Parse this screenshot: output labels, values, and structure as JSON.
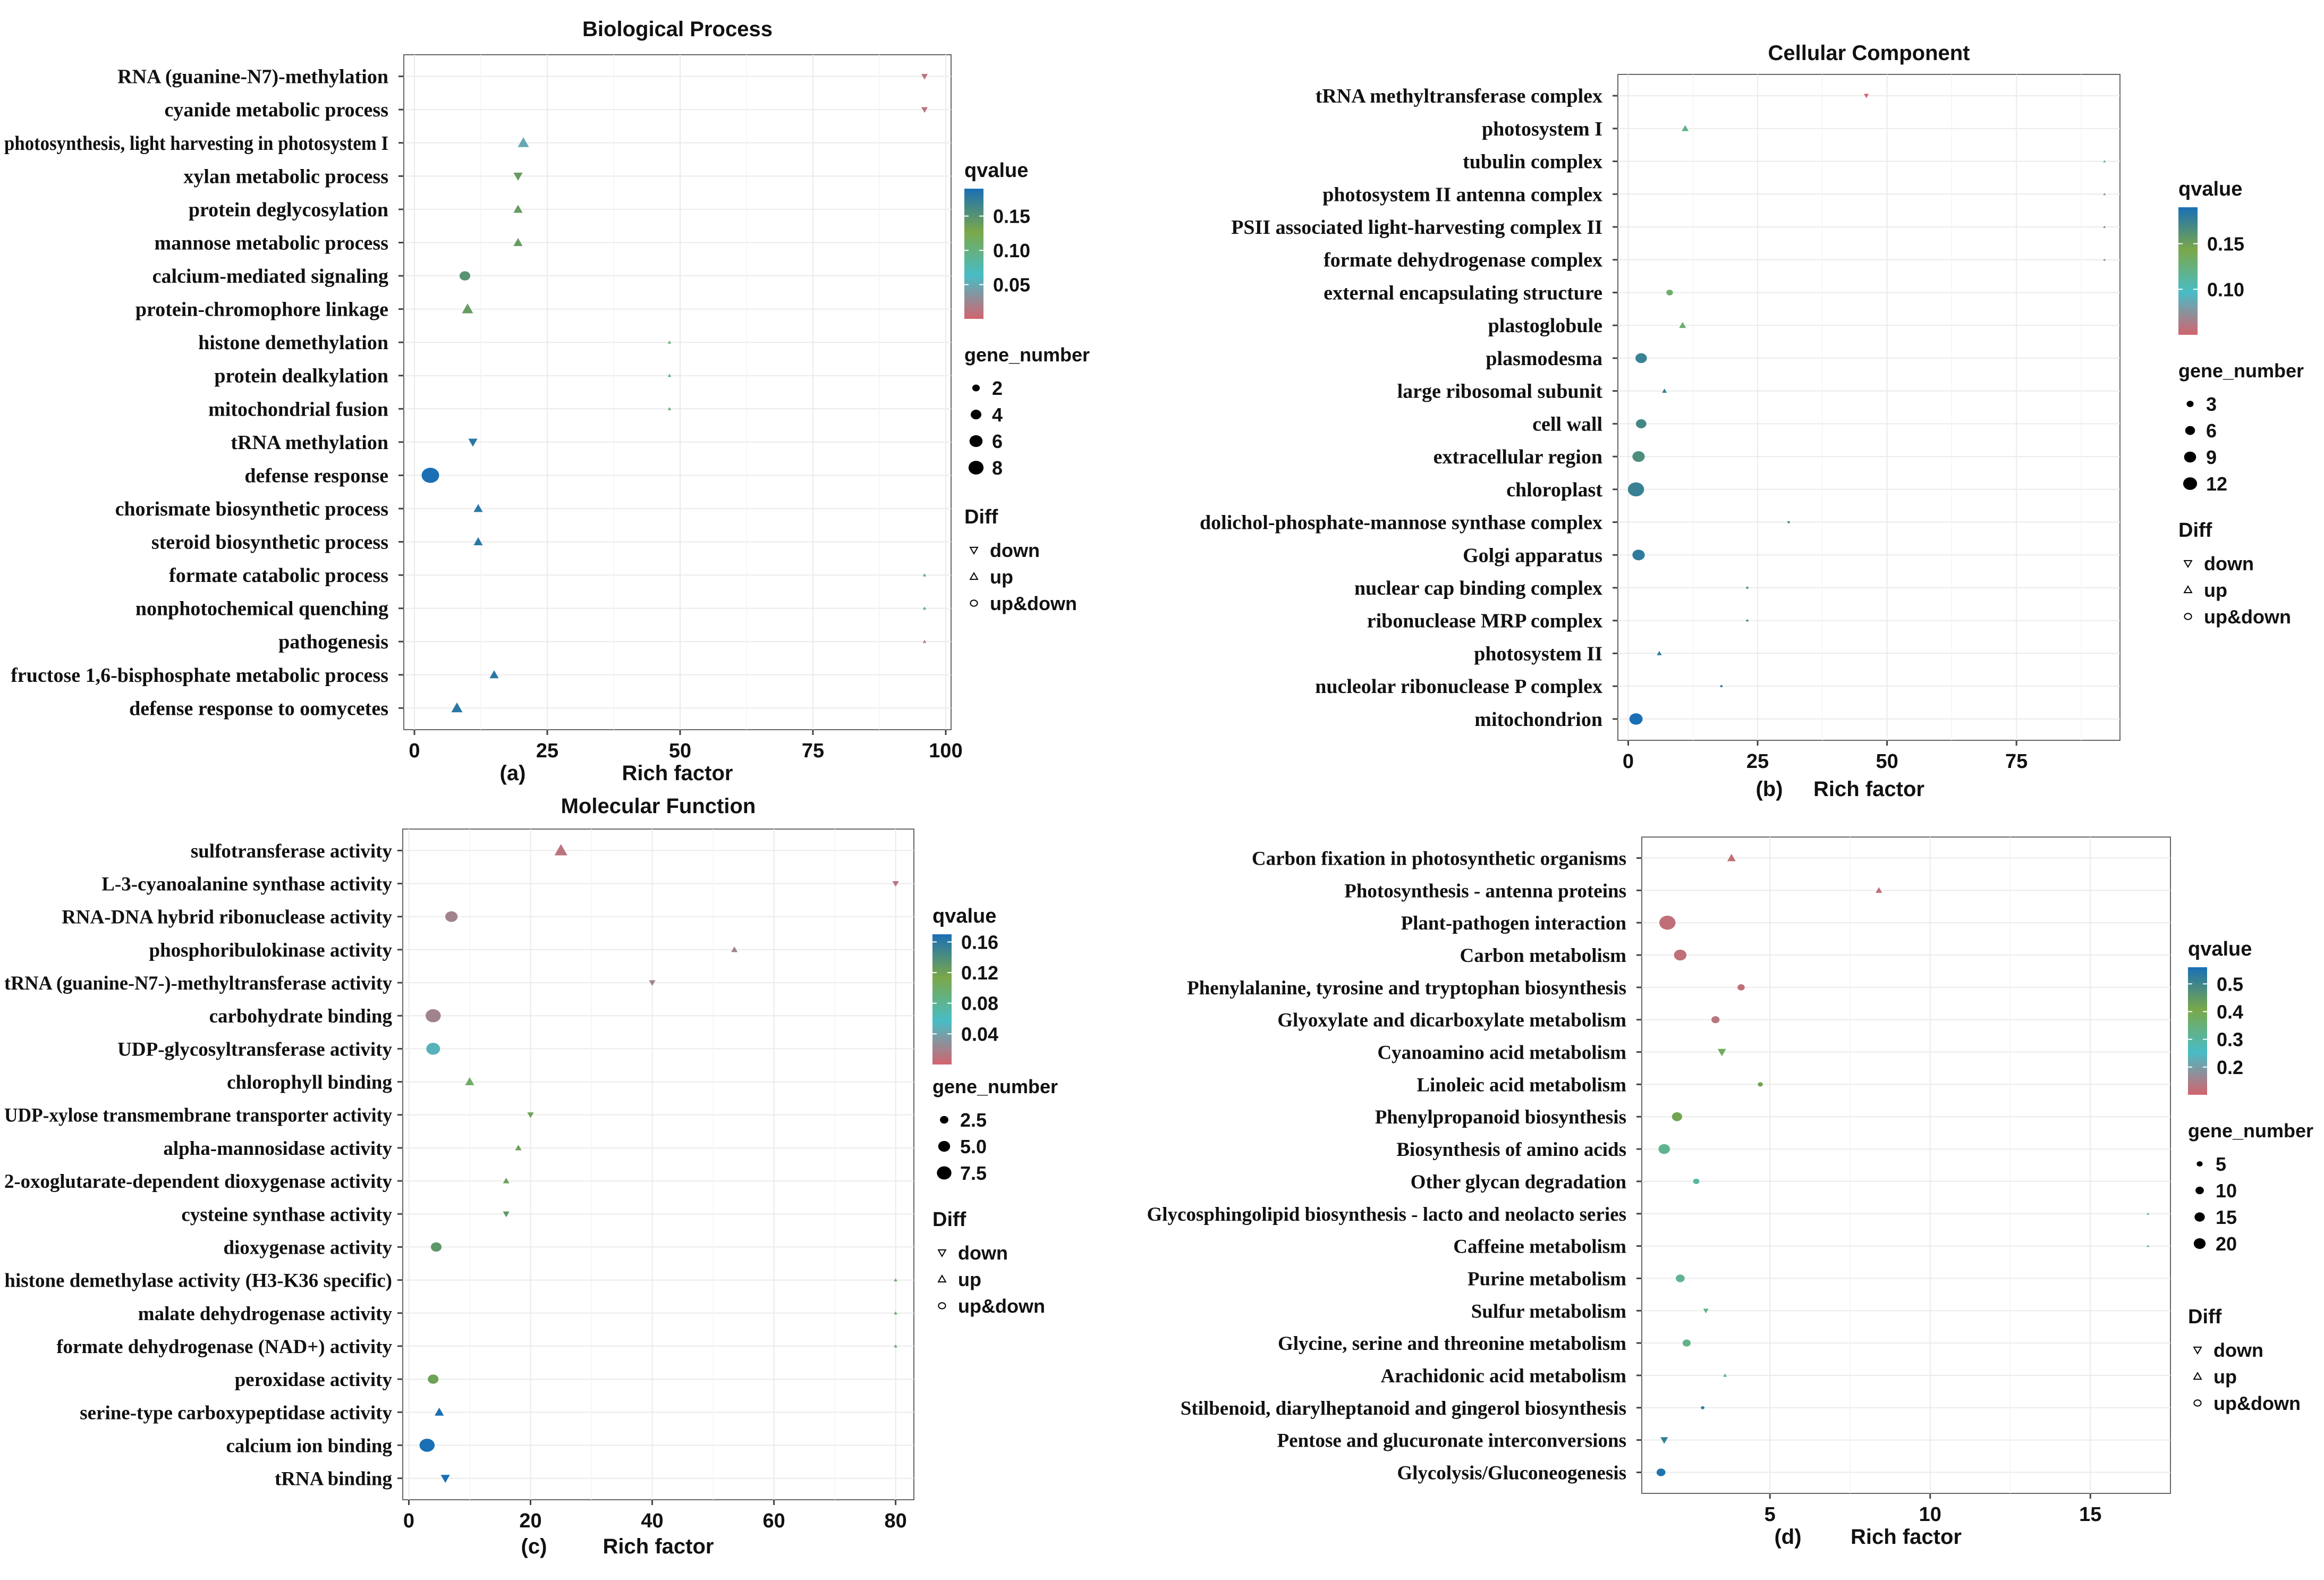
{
  "legend_labels": {
    "qvalue": "qvalue",
    "gene_number": "gene_number",
    "diff": "Diff",
    "down": "down",
    "up": "up",
    "updown": "up&down"
  },
  "colors": {
    "low_q": "#d2646e",
    "mid1_q": "#48bcc6",
    "mid2_q": "#7aa84a",
    "high_q": "#1a6fb5",
    "grid": "#ebebeb",
    "axis": "#444444"
  },
  "chart_data": [
    {
      "type": "scatter",
      "panel_label": "(a)",
      "title": "Biological Process",
      "xlabel": "Rich factor",
      "xlim": [
        -2,
        101
      ],
      "xticks": [
        0,
        25,
        50,
        75,
        100
      ],
      "qvalue_range": [
        0.0,
        0.19
      ],
      "qvalue_ticks": [
        "0.15",
        "0.10",
        "0.05"
      ],
      "qvalue_tick_values": [
        0.15,
        0.1,
        0.05
      ],
      "gene_number_ticks": [
        "2",
        "4",
        "6",
        "8"
      ],
      "gene_number_values": [
        2,
        4,
        6,
        8
      ],
      "terms": [
        {
          "name": "RNA (guanine-N7)-methylation",
          "rich": 96,
          "genes": 1,
          "q": 0.01,
          "diff": "down"
        },
        {
          "name": "cyanide metabolic process",
          "rich": 96,
          "genes": 1,
          "q": 0.01,
          "diff": "down"
        },
        {
          "name": "photosynthesis, light harvesting in photosystem I",
          "rich": 20.5,
          "genes": 3,
          "q": 0.05,
          "diff": "up"
        },
        {
          "name": "xylan metabolic process",
          "rich": 19.5,
          "genes": 2,
          "q": 0.14,
          "diff": "down"
        },
        {
          "name": "protein deglycosylation",
          "rich": 19.5,
          "genes": 2,
          "q": 0.14,
          "diff": "up"
        },
        {
          "name": "mannose metabolic process",
          "rich": 19.5,
          "genes": 2,
          "q": 0.14,
          "diff": "up"
        },
        {
          "name": "calcium-mediated signaling",
          "rich": 9.5,
          "genes": 3,
          "q": 0.15,
          "diff": "updown"
        },
        {
          "name": "protein-chromophore linkage",
          "rich": 10,
          "genes": 3,
          "q": 0.14,
          "diff": "up"
        },
        {
          "name": "histone demethylation",
          "rich": 48,
          "genes": 0.3,
          "q": 0.1,
          "diff": "up"
        },
        {
          "name": "protein dealkylation",
          "rich": 48,
          "genes": 0.3,
          "q": 0.1,
          "diff": "up"
        },
        {
          "name": "mitochondrial fusion",
          "rich": 48,
          "genes": 0.3,
          "q": 0.1,
          "diff": "up"
        },
        {
          "name": "tRNA methylation",
          "rich": 11,
          "genes": 2,
          "q": 0.18,
          "diff": "down"
        },
        {
          "name": "defense response",
          "rich": 3,
          "genes": 8,
          "q": 0.19,
          "diff": "updown"
        },
        {
          "name": "chorismate biosynthetic process",
          "rich": 12,
          "genes": 2,
          "q": 0.18,
          "diff": "up"
        },
        {
          "name": "steroid biosynthetic process",
          "rich": 12,
          "genes": 2,
          "q": 0.18,
          "diff": "up"
        },
        {
          "name": "formate catabolic process",
          "rich": 96,
          "genes": 0.3,
          "q": 0.1,
          "diff": "up"
        },
        {
          "name": "nonphotochemical quenching",
          "rich": 96,
          "genes": 0.3,
          "q": 0.1,
          "diff": "up"
        },
        {
          "name": "pathogenesis",
          "rich": 96,
          "genes": 0.3,
          "q": 0.02,
          "diff": "up"
        },
        {
          "name": "fructose 1,6-bisphosphate metabolic process",
          "rich": 15,
          "genes": 2,
          "q": 0.18,
          "diff": "up"
        },
        {
          "name": "defense response to oomycetes",
          "rich": 8,
          "genes": 3,
          "q": 0.18,
          "diff": "up"
        }
      ]
    },
    {
      "type": "scatter",
      "panel_label": "(b)",
      "title": "Cellular Component",
      "xlabel": "Rich factor",
      "xlim": [
        -2,
        95
      ],
      "xticks": [
        0,
        25,
        50,
        75
      ],
      "qvalue_range": [
        0.05,
        0.19
      ],
      "qvalue_ticks": [
        "0.15",
        "0.10"
      ],
      "qvalue_tick_values": [
        0.15,
        0.1
      ],
      "gene_number_ticks": [
        "3",
        "6",
        "9",
        "12"
      ],
      "gene_number_values": [
        3,
        6,
        9,
        12
      ],
      "terms": [
        {
          "name": "tRNA methyltransferase complex",
          "rich": 46,
          "genes": 1,
          "q": 0.05,
          "diff": "down"
        },
        {
          "name": "photosystem I",
          "rich": 11,
          "genes": 2,
          "q": 0.12,
          "diff": "up"
        },
        {
          "name": "tubulin complex",
          "rich": 92,
          "genes": 0.3,
          "q": 0.12,
          "diff": "up"
        },
        {
          "name": "photosystem II antenna complex",
          "rich": 92,
          "genes": 0.3,
          "q": 0.07,
          "diff": "up"
        },
        {
          "name": "PSII associated light-harvesting complex II",
          "rich": 92,
          "genes": 0.3,
          "q": 0.07,
          "diff": "up"
        },
        {
          "name": "formate dehydrogenase complex",
          "rich": 92,
          "genes": 0.3,
          "q": 0.07,
          "diff": "up"
        },
        {
          "name": "external encapsulating structure",
          "rich": 8,
          "genes": 2,
          "q": 0.13,
          "diff": "updown"
        },
        {
          "name": "plastoglobule",
          "rich": 10.5,
          "genes": 2,
          "q": 0.13,
          "diff": "up"
        },
        {
          "name": "plasmodesma",
          "rich": 2.5,
          "genes": 6,
          "q": 0.175,
          "diff": "updown"
        },
        {
          "name": "large ribosomal subunit",
          "rich": 7,
          "genes": 1,
          "q": 0.175,
          "diff": "up"
        },
        {
          "name": "cell wall",
          "rich": 2.5,
          "genes": 5,
          "q": 0.17,
          "diff": "updown"
        },
        {
          "name": "extracellular region",
          "rich": 2,
          "genes": 7,
          "q": 0.165,
          "diff": "updown"
        },
        {
          "name": "chloroplast",
          "rich": 1.5,
          "genes": 12,
          "q": 0.175,
          "diff": "updown"
        },
        {
          "name": "dolichol-phosphate-mannose synthase complex",
          "rich": 31,
          "genes": 0.3,
          "q": 0.17,
          "diff": "updown"
        },
        {
          "name": "Golgi apparatus",
          "rich": 2,
          "genes": 7,
          "q": 0.18,
          "diff": "updown"
        },
        {
          "name": "nuclear cap binding complex",
          "rich": 23,
          "genes": 0.3,
          "q": 0.16,
          "diff": "updown"
        },
        {
          "name": "ribonuclease MRP complex",
          "rich": 23,
          "genes": 0.3,
          "q": 0.16,
          "diff": "updown"
        },
        {
          "name": "photosystem II",
          "rich": 6,
          "genes": 1,
          "q": 0.18,
          "diff": "up"
        },
        {
          "name": "nucleolar ribonuclease P complex",
          "rich": 18,
          "genes": 0.3,
          "q": 0.18,
          "diff": "updown"
        },
        {
          "name": "mitochondrion",
          "rich": 1.5,
          "genes": 8,
          "q": 0.19,
          "diff": "updown"
        }
      ]
    },
    {
      "type": "scatter",
      "panel_label": "(c)",
      "title": "Molecular Function",
      "xlabel": "Rich factor",
      "xlim": [
        -1,
        83
      ],
      "xticks": [
        0,
        20,
        40,
        60,
        80
      ],
      "qvalue_range": [
        0.0,
        0.17
      ],
      "qvalue_ticks": [
        "0.16",
        "0.12",
        "0.08",
        "0.04"
      ],
      "qvalue_tick_values": [
        0.16,
        0.12,
        0.08,
        0.04
      ],
      "gene_number_ticks": [
        "2.5",
        "5.0",
        "7.5"
      ],
      "gene_number_values": [
        2.5,
        5.0,
        7.5
      ],
      "terms": [
        {
          "name": "sulfotransferase activity",
          "rich": 25,
          "genes": 4,
          "q": 0.01,
          "diff": "up"
        },
        {
          "name": "L-3-cyanoalanine synthase activity",
          "rich": 80,
          "genes": 1,
          "q": 0.01,
          "diff": "down"
        },
        {
          "name": "RNA-DNA hybrid ribonuclease activity",
          "rich": 7,
          "genes": 4,
          "q": 0.02,
          "diff": "updown"
        },
        {
          "name": "phosphoribulokinase activity",
          "rich": 53.5,
          "genes": 1,
          "q": 0.02,
          "diff": "up"
        },
        {
          "name": "tRNA (guanine-N7-)-methyltransferase activity",
          "rich": 40,
          "genes": 1,
          "q": 0.02,
          "diff": "down"
        },
        {
          "name": "carbohydrate binding",
          "rich": 4,
          "genes": 6,
          "q": 0.02,
          "diff": "updown"
        },
        {
          "name": "UDP-glycosyltransferase activity",
          "rich": 4,
          "genes": 5,
          "q": 0.05,
          "diff": "updown"
        },
        {
          "name": "chlorophyll binding",
          "rich": 10,
          "genes": 2,
          "q": 0.1,
          "diff": "up"
        },
        {
          "name": "UDP-xylose transmembrane transporter activity",
          "rich": 20,
          "genes": 1,
          "q": 0.12,
          "diff": "down"
        },
        {
          "name": "alpha-mannosidase activity",
          "rich": 18,
          "genes": 1,
          "q": 0.12,
          "diff": "up"
        },
        {
          "name": "2-oxoglutarate-dependent dioxygenase activity",
          "rich": 16,
          "genes": 1,
          "q": 0.12,
          "diff": "up"
        },
        {
          "name": "cysteine synthase activity",
          "rich": 16,
          "genes": 1,
          "q": 0.13,
          "diff": "down"
        },
        {
          "name": "dioxygenase activity",
          "rich": 4.5,
          "genes": 3,
          "q": 0.13,
          "diff": "updown"
        },
        {
          "name": "histone demethylase activity (H3-K36 specific)",
          "rich": 80,
          "genes": 0.3,
          "q": 0.1,
          "diff": "up"
        },
        {
          "name": "malate dehydrogenase activity",
          "rich": 80,
          "genes": 0.3,
          "q": 0.1,
          "diff": "up"
        },
        {
          "name": "formate dehydrogenase (NAD+) activity",
          "rich": 80,
          "genes": 0.3,
          "q": 0.1,
          "diff": "up"
        },
        {
          "name": "peroxidase activity",
          "rich": 4,
          "genes": 3,
          "q": 0.12,
          "diff": "updown"
        },
        {
          "name": "serine-type carboxypeptidase activity",
          "rich": 5,
          "genes": 2,
          "q": 0.17,
          "diff": "up"
        },
        {
          "name": "calcium ion binding",
          "rich": 3,
          "genes": 6,
          "q": 0.17,
          "diff": "updown"
        },
        {
          "name": "tRNA binding",
          "rich": 6,
          "genes": 2,
          "q": 0.17,
          "diff": "down"
        }
      ]
    },
    {
      "type": "scatter",
      "panel_label": "(d)",
      "title": "",
      "xlabel": "Rich factor",
      "xlim": [
        1,
        17.5
      ],
      "xticks": [
        5,
        10,
        15
      ],
      "qvalue_range": [
        0.1,
        0.56
      ],
      "qvalue_ticks": [
        "0.5",
        "0.4",
        "0.3",
        "0.2"
      ],
      "qvalue_tick_values": [
        0.5,
        0.4,
        0.3,
        0.2
      ],
      "gene_number_ticks": [
        "5",
        "10",
        "15",
        "20"
      ],
      "gene_number_values": [
        5,
        10,
        15,
        20
      ],
      "terms": [
        {
          "name": "Carbon fixation in photosynthetic organisms",
          "rich": 3.8,
          "genes": 5,
          "q": 0.12,
          "diff": "up"
        },
        {
          "name": "Photosynthesis - antenna proteins",
          "rich": 8.4,
          "genes": 3,
          "q": 0.12,
          "diff": "up"
        },
        {
          "name": "Plant-pathogen interaction",
          "rich": 1.8,
          "genes": 20,
          "q": 0.12,
          "diff": "updown"
        },
        {
          "name": "Carbon metabolism",
          "rich": 2.2,
          "genes": 12,
          "q": 0.12,
          "diff": "updown"
        },
        {
          "name": "Phenylalanine, tyrosine and tryptophan biosynthesis",
          "rich": 4.1,
          "genes": 4,
          "q": 0.12,
          "diff": "updown"
        },
        {
          "name": "Glyoxylate and dicarboxylate metabolism",
          "rich": 3.3,
          "genes": 5,
          "q": 0.13,
          "diff": "updown"
        },
        {
          "name": "Cyanoamino acid metabolism",
          "rich": 3.5,
          "genes": 5,
          "q": 0.38,
          "diff": "down"
        },
        {
          "name": "Linoleic acid metabolism",
          "rich": 4.7,
          "genes": 2,
          "q": 0.42,
          "diff": "updown"
        },
        {
          "name": "Phenylpropanoid biosynthesis",
          "rich": 2.1,
          "genes": 8,
          "q": 0.42,
          "diff": "updown"
        },
        {
          "name": "Biosynthesis of amino acids",
          "rich": 1.7,
          "genes": 10,
          "q": 0.32,
          "diff": "updown"
        },
        {
          "name": "Other glycan degradation",
          "rich": 2.7,
          "genes": 3,
          "q": 0.3,
          "diff": "updown"
        },
        {
          "name": "Glycosphingolipid biosynthesis - lacto and neolacto series",
          "rich": 16.8,
          "genes": 0.3,
          "q": 0.3,
          "diff": "up"
        },
        {
          "name": "Caffeine metabolism",
          "rich": 16.8,
          "genes": 0.3,
          "q": 0.3,
          "diff": "up"
        },
        {
          "name": "Purine metabolism",
          "rich": 2.2,
          "genes": 6,
          "q": 0.32,
          "diff": "updown"
        },
        {
          "name": "Sulfur metabolism",
          "rich": 3.0,
          "genes": 2,
          "q": 0.33,
          "diff": "down"
        },
        {
          "name": "Glycine, serine and threonine metabolism",
          "rich": 2.4,
          "genes": 5,
          "q": 0.33,
          "diff": "updown"
        },
        {
          "name": "Arachidonic acid metabolism",
          "rich": 3.6,
          "genes": 1,
          "q": 0.33,
          "diff": "up"
        },
        {
          "name": "Stilbenoid, diarylheptanoid and gingerol biosynthesis",
          "rich": 2.9,
          "genes": 1,
          "q": 0.52,
          "diff": "updown"
        },
        {
          "name": "Pentose and glucuronate interconversions",
          "rich": 1.7,
          "genes": 4,
          "q": 0.52,
          "diff": "down"
        },
        {
          "name": "Glycolysis/Gluconeogenesis",
          "rich": 1.6,
          "genes": 6,
          "q": 0.55,
          "diff": "updown"
        }
      ]
    }
  ]
}
